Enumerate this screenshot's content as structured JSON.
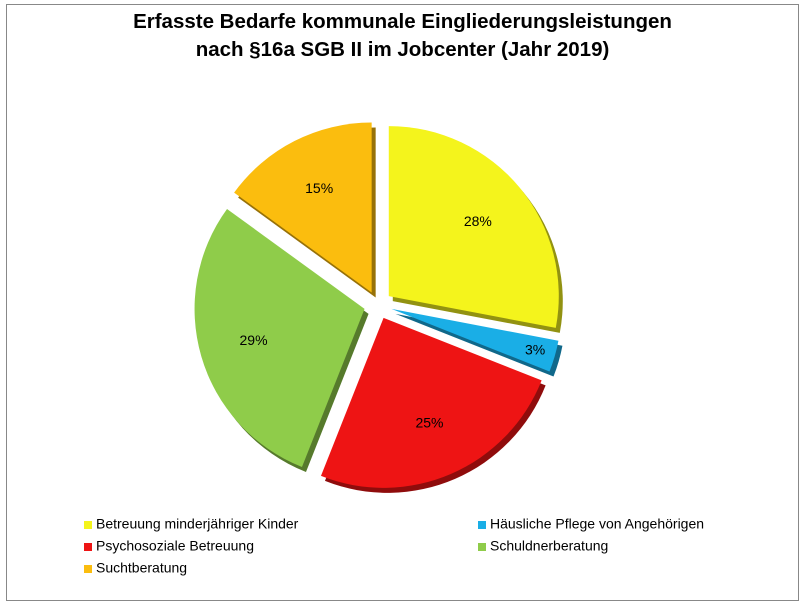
{
  "chart_data": {
    "type": "pie",
    "title": "Erfasste Bedarfe kommunale Eingliederungsleistungen nach §16a SGB II im Jobcenter (Jahr 2019)",
    "categories": [
      "Betreuung minderjähriger Kinder",
      "Häusliche Pflege von Angehörigen",
      "Psychosoziale Betreuung",
      "Schuldnerberatung",
      "Suchtberatung"
    ],
    "values": [
      28,
      3,
      25,
      29,
      15
    ],
    "value_labels": [
      "28%",
      "3%",
      "25%",
      "29%",
      "15%"
    ],
    "colors": [
      "#f4f41c",
      "#1aaee6",
      "#ee1414",
      "#8fcc4a",
      "#fbbd0e"
    ],
    "legend": "bottom"
  }
}
